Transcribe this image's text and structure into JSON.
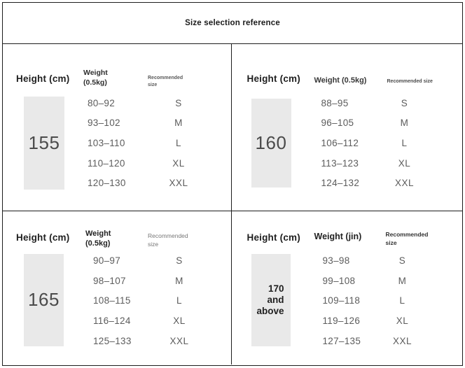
{
  "title": "Size selection reference",
  "colors": {
    "border": "#1d1d1d",
    "box_background": "#e9e9e9",
    "header_text": "#1f1f1f",
    "value_text": "#5c5c5c"
  },
  "panels": [
    {
      "name": "height-155",
      "height_label": "Height (cm)",
      "weight_label_1": "Weight",
      "weight_label_2": "(0.5kg)",
      "rec_label_1": "Recommended",
      "rec_label_2": "size",
      "height_value": "155",
      "rows": [
        {
          "weight": "80–92",
          "size": "S"
        },
        {
          "weight": "93–102",
          "size": "M"
        },
        {
          "weight": "103–110",
          "size": "L"
        },
        {
          "weight": "110–120",
          "size": "XL"
        },
        {
          "weight": "120–130",
          "size": "XXL"
        }
      ]
    },
    {
      "name": "height-160",
      "height_label": "Height (cm)",
      "weight_label": "Weight (0.5kg)",
      "rec_label": "Recommended size",
      "height_value": "160",
      "rows": [
        {
          "weight": "88–95",
          "size": "S"
        },
        {
          "weight": "96–105",
          "size": "M"
        },
        {
          "weight": "106–112",
          "size": "L"
        },
        {
          "weight": "113–123",
          "size": "XL"
        },
        {
          "weight": "124–132",
          "size": "XXL"
        }
      ]
    },
    {
      "name": "height-165",
      "height_label": "Height (cm)",
      "weight_label_1": "Weight",
      "weight_label_2": "(0.5kg)",
      "rec_label_1": "Recommended",
      "rec_label_2": "size",
      "height_value": "165",
      "rows": [
        {
          "weight": "90–97",
          "size": "S"
        },
        {
          "weight": "98–107",
          "size": "M"
        },
        {
          "weight": "108–115",
          "size": "L"
        },
        {
          "weight": "116–124",
          "size": "XL"
        },
        {
          "weight": "125–133",
          "size": "XXL"
        }
      ]
    },
    {
      "name": "height-170-and-above",
      "height_label": "Height (cm)",
      "weight_label": "Weight (jin)",
      "rec_label_1": "Recommended",
      "rec_label_2": "size",
      "height_value_1": "170",
      "height_value_2": "and",
      "height_value_3": "above",
      "rows": [
        {
          "weight": "93–98",
          "size": "S"
        },
        {
          "weight": "99–108",
          "size": "M"
        },
        {
          "weight": "109–118",
          "size": "L"
        },
        {
          "weight": "119–126",
          "size": "XL"
        },
        {
          "weight": "127–135",
          "size": "XXL"
        }
      ]
    }
  ]
}
